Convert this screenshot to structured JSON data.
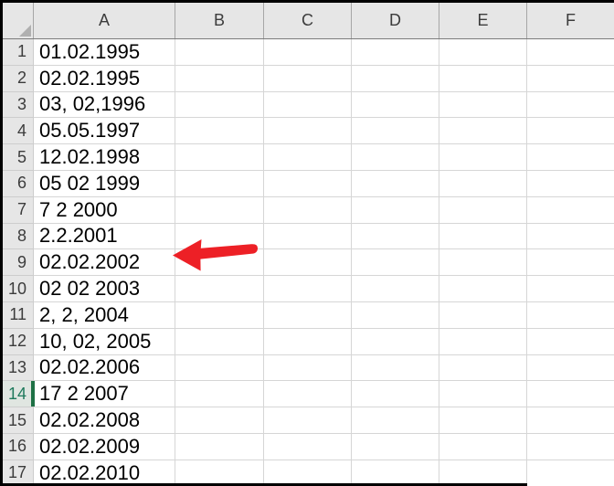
{
  "spreadsheet": {
    "select_all_tooltip": "Select All",
    "column_headers": [
      "A",
      "B",
      "C",
      "D",
      "E",
      "F"
    ],
    "selected_row": "14",
    "rows": [
      {
        "row": "1",
        "A": "01.02.1995"
      },
      {
        "row": "2",
        "A": "02.02.1995"
      },
      {
        "row": "3",
        "A": "03, 02,1996"
      },
      {
        "row": "4",
        "A": "05.05.1997"
      },
      {
        "row": "5",
        "A": "12.02.1998"
      },
      {
        "row": "6",
        "A": "05 02 1999"
      },
      {
        "row": "7",
        "A": "7 2 2000"
      },
      {
        "row": "8",
        "A": "2.2.2001"
      },
      {
        "row": "9",
        "A": "02.02.2002"
      },
      {
        "row": "10",
        "A": "02 02 2003"
      },
      {
        "row": "11",
        "A": "2, 2, 2004"
      },
      {
        "row": "12",
        "A": "10, 02, 2005"
      },
      {
        "row": "13",
        "A": "02.02.2006"
      },
      {
        "row": "14",
        "A": "17 2 2007"
      },
      {
        "row": "15",
        "A": "02.02.2008"
      },
      {
        "row": "16",
        "A": "02.02.2009"
      },
      {
        "row": "17",
        "A": "02.02.2010"
      }
    ]
  },
  "annotation": {
    "shape": "arrow",
    "direction": "left",
    "points_at_row": "9"
  },
  "colors": {
    "arrow_red": "#ed2026",
    "selection_green_bar": "#1e7145",
    "selection_green_text": "#1f7a5c",
    "header_bg": "#e6e6e6",
    "gridline": "#d6d6d6",
    "frame_black": "#000000",
    "select_all_triangle": "#b0b0b0"
  }
}
